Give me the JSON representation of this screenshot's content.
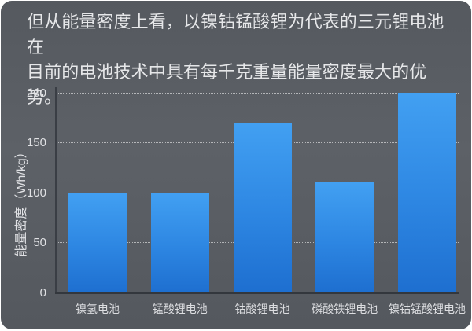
{
  "header": {
    "line1": "但从能量密度上看，以镍钴锰酸锂为代表的三元锂电池在",
    "line2": "目前的电池技术中具有每千克重量能量密度最大的优势。"
  },
  "chart_data": {
    "type": "bar",
    "title": "",
    "categories": [
      "镍氢电池",
      "锰酸锂电池",
      "钴酸锂电池",
      "磷酸铁锂电池",
      "镍钴锰酸锂电池"
    ],
    "values": [
      100,
      100,
      170,
      110,
      200
    ],
    "xlabel": "",
    "ylabel": "能量密度（Wh/kg）",
    "yticks": [
      0,
      50,
      100,
      150,
      200
    ],
    "ylim": [
      0,
      200
    ],
    "grid": "horizontal-dotted",
    "legend": "none",
    "bar_color_top": "#42a0f2",
    "bar_color_bottom": "#1e6fd0"
  },
  "colors": {
    "page_bg": "#ffffff",
    "card_bg": "#5a5e65",
    "header_text": "#e6e7e9",
    "axis_line": "#33373d",
    "gridline": "rgba(255,255,255,0.55)",
    "tick_text": "#e0e1e4"
  }
}
